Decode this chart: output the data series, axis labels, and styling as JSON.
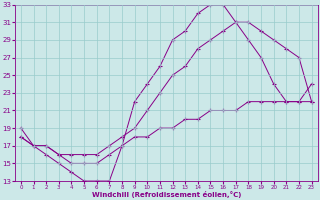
{
  "xlabel": "Windchill (Refroidissement éolien,°C)",
  "background_color": "#cce8e8",
  "line_color": "#880088",
  "grid_color": "#99cccc",
  "xlim": [
    -0.5,
    23.5
  ],
  "ylim": [
    13,
    33
  ],
  "yticks": [
    13,
    15,
    17,
    19,
    21,
    23,
    25,
    27,
    29,
    31,
    33
  ],
  "xticks": [
    0,
    1,
    2,
    3,
    4,
    5,
    6,
    7,
    8,
    9,
    10,
    11,
    12,
    13,
    14,
    15,
    16,
    17,
    18,
    19,
    20,
    21,
    22,
    23
  ],
  "line1_x": [
    0,
    1,
    2,
    3,
    4,
    5,
    6,
    7,
    8,
    9,
    10,
    11,
    12,
    13,
    14,
    15,
    16,
    17,
    18,
    19,
    20,
    21,
    22,
    23
  ],
  "line1_y": [
    19,
    17,
    16,
    15,
    14,
    13,
    13,
    13,
    17,
    22,
    24,
    26,
    29,
    30,
    32,
    33,
    33,
    31,
    29,
    27,
    24,
    22,
    22,
    24
  ],
  "line2_x": [
    0,
    1,
    2,
    3,
    4,
    5,
    6,
    7,
    8,
    9,
    10,
    11,
    12,
    13,
    14,
    15,
    16,
    17,
    18,
    19,
    20,
    21,
    22,
    23
  ],
  "line2_y": [
    18,
    17,
    17,
    16,
    16,
    16,
    16,
    17,
    18,
    19,
    21,
    23,
    25,
    26,
    28,
    29,
    30,
    31,
    31,
    30,
    29,
    28,
    27,
    22
  ],
  "line3_x": [
    0,
    1,
    2,
    3,
    4,
    5,
    6,
    7,
    8,
    9,
    10,
    11,
    12,
    13,
    14,
    15,
    16,
    17,
    18,
    19,
    20,
    21,
    22,
    23
  ],
  "line3_y": [
    18,
    17,
    17,
    16,
    15,
    15,
    15,
    16,
    17,
    18,
    18,
    19,
    19,
    20,
    20,
    21,
    21,
    21,
    22,
    22,
    22,
    22,
    22,
    22
  ]
}
